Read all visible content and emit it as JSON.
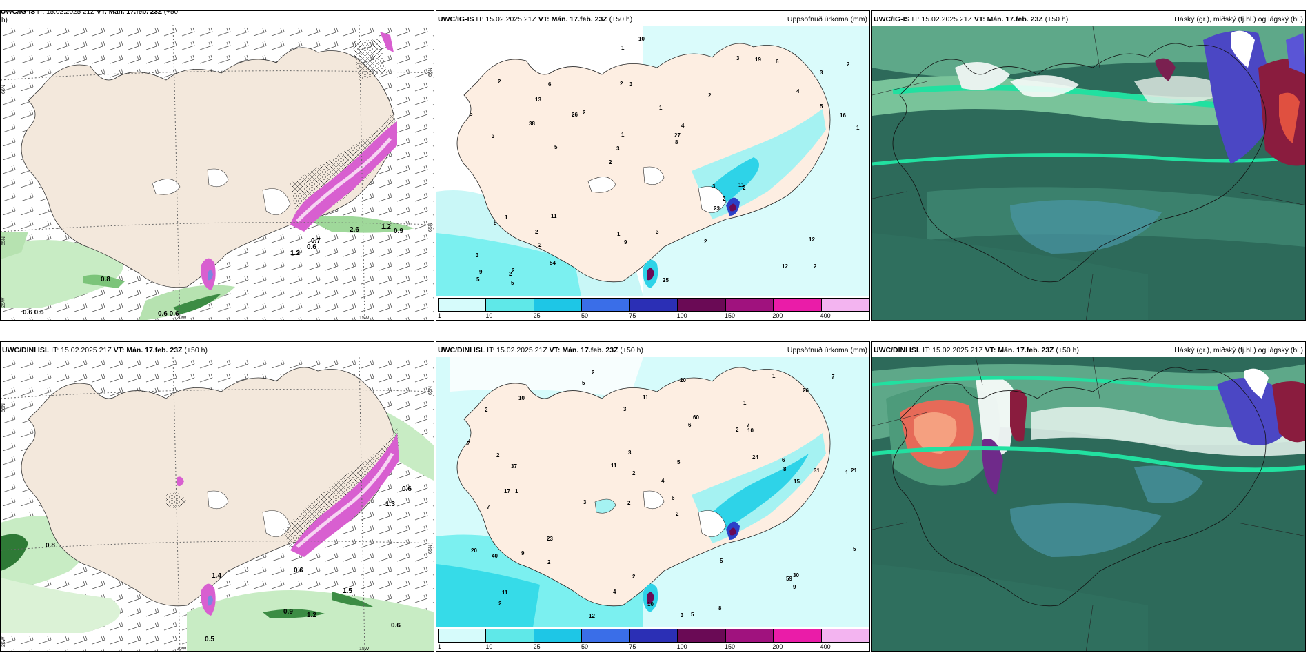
{
  "rows": [
    {
      "row": "top",
      "panels": [
        {
          "kind": "wind",
          "title_model": "UWC/IG-IS",
          "title_it": "IT: 15.02.2025 21Z",
          "title_vt": "VT: Mán. 17.feb. 23Z",
          "title_offset": "(+50",
          "title_offset_wrap": "h)",
          "values": [
            "0.8",
            "0.6 0.6",
            "0.6 0.6",
            "0.9",
            "1.2",
            "2.6",
            "0.7",
            "1.2",
            "0.6"
          ],
          "axis": {
            "lon_a": "20W",
            "lon_b": "15W",
            "lat_a": "65N",
            "lat_b": "66N",
            "lat_c": "25W"
          }
        },
        {
          "kind": "precip",
          "title_model": "UWC/IG-IS",
          "title_it": "IT: 15.02.2025 21Z",
          "title_vt": "VT: Mán. 17.feb. 23Z",
          "title_offset": "(+50 h)",
          "label": "Uppsöfnuð úrkoma (mm)",
          "numbers": [
            "2",
            "3",
            "3",
            "2",
            "2",
            "2",
            "2",
            "1",
            "1",
            "2",
            "3",
            "2",
            "3",
            "4",
            "2",
            "2",
            "1",
            "1",
            "3",
            "5",
            "3",
            "1",
            "1",
            "6",
            "3",
            "11",
            "12",
            "12",
            "11",
            "25",
            "26",
            "38",
            "23",
            "54",
            "16",
            "27",
            "9",
            "9",
            "8",
            "8",
            "4",
            "2",
            "2",
            "2",
            "2",
            "5",
            "5",
            "3",
            "6",
            "10",
            "5",
            "5",
            "13",
            "19",
            "2"
          ]
        },
        {
          "kind": "cloud",
          "title_model": "UWC/IG-IS",
          "title_it": "IT: 15.02.2025 21Z",
          "title_vt": "VT: Mán. 17.feb. 23Z",
          "title_offset": "(+50 h)",
          "label": "Háský (gr.), miðský (fj.bl.) og lágský (bl.)"
        }
      ]
    },
    {
      "row": "bottom",
      "panels": [
        {
          "kind": "wind",
          "title_model": "UWC/DINI ISL",
          "title_it": "IT: 15.02.2025 21Z",
          "title_vt": "VT: Mán. 17.feb. 23Z",
          "title_offset": "(+50 h)",
          "values": [
            "0.8",
            "0.6",
            "1.3",
            "0.6",
            "1.5",
            "0.9",
            "1.2",
            "0.6",
            "0.5",
            "1.4"
          ],
          "axis": {
            "lon_a": "20W",
            "lon_b": "15W",
            "lat_a": "65N",
            "lat_b": "66N",
            "lat_c": "25W"
          }
        },
        {
          "kind": "precip",
          "title_model": "UWC/DINI ISL",
          "title_it": "IT: 15.02.2025 21Z",
          "title_vt": "VT: Mán. 17.feb. 23Z",
          "title_offset": "(+50 h)",
          "label": "Uppsöfnuð úrkoma (mm)",
          "numbers": [
            "2",
            "1",
            "1",
            "2",
            "2",
            "1",
            "2",
            "2",
            "7",
            "6",
            "4",
            "2",
            "5",
            "3",
            "3",
            "5",
            "2",
            "1",
            "24",
            "23",
            "37",
            "17",
            "21",
            "31",
            "20",
            "2",
            "2",
            "8",
            "30",
            "40",
            "59",
            "60",
            "9",
            "11",
            "5",
            "5",
            "6",
            "4",
            "7",
            "11",
            "11",
            "12",
            "8",
            "10",
            "10",
            "10",
            "9",
            "7",
            "7",
            "6",
            "3",
            "15",
            "5",
            "26",
            "20",
            "2",
            "3"
          ]
        },
        {
          "kind": "cloud",
          "title_model": "UWC/DINI ISL",
          "title_it": "IT: 15.02.2025 21Z",
          "title_vt": "VT: Mán. 17.feb. 23Z",
          "title_offset": "(+50 h)",
          "label": "Háský (gr.), miðský (fj.bl.) og lágský (bl.)"
        }
      ]
    }
  ],
  "colorbar": {
    "labels": [
      "1",
      "10",
      "25",
      "50",
      "75",
      "100",
      "150",
      "200",
      "400"
    ],
    "colors": [
      "#d6fbfb",
      "#5fe8e8",
      "#1ec6e6",
      "#3a6ee8",
      "#2b2fb5",
      "#6a0a55",
      "#a0127e",
      "#ea1ca8",
      "#f3b4f0"
    ]
  }
}
